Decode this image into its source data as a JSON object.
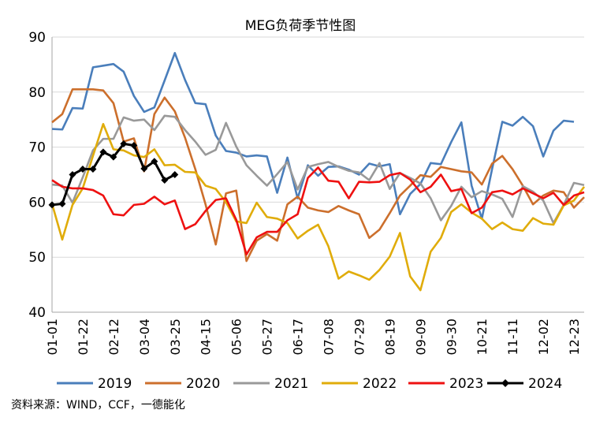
{
  "chart_data": {
    "type": "line",
    "title": "MEG负荷季节性图",
    "xlabel": "",
    "ylabel": "",
    "ylim": [
      40,
      90
    ],
    "yticks": [
      "40",
      "50",
      "60",
      "70",
      "80",
      "90"
    ],
    "xticks": [
      "01-01",
      "01-22",
      "02-12",
      "03-04",
      "03-25",
      "04-15",
      "05-06",
      "05-27",
      "06-17",
      "07-08",
      "07-29",
      "08-19",
      "09-09",
      "09-30",
      "10-21",
      "11-11",
      "12-02",
      "12-23"
    ],
    "grid": "horizontal",
    "legend_position": "bottom",
    "series": [
      {
        "name": "2019",
        "color": "#4a7ebb",
        "marker": "none",
        "x": [
          0,
          3,
          6,
          9,
          12,
          15,
          18,
          21,
          24,
          27,
          30,
          33,
          36,
          39,
          42,
          45,
          48,
          51,
          54,
          57,
          60,
          63,
          66,
          69,
          72,
          75,
          78,
          81,
          84,
          87,
          90,
          93,
          96,
          99,
          102,
          105,
          108,
          111,
          114,
          117,
          120,
          123,
          126,
          129,
          132,
          135,
          138,
          141,
          144,
          147,
          150,
          153,
          156
        ],
        "values": [
          73.3,
          73.2,
          77.1,
          77,
          84.5,
          84.8,
          85.1,
          83.7,
          79.3,
          76.4,
          77.2,
          82.1,
          87.1,
          82.2,
          78,
          77.8,
          72.1,
          69.3,
          69,
          68.3,
          68.5,
          68.3,
          61.7,
          68.1,
          60.7,
          66.7,
          64.8,
          66.4,
          66.5,
          65.9,
          65,
          67,
          66.5,
          66.9,
          57.8,
          61.5,
          63.3,
          67.1,
          66.9,
          70.9,
          74.5,
          63,
          57,
          66,
          74.6,
          73.9,
          75.5,
          73.8,
          68.3,
          73,
          74.8,
          74.6,
          null
        ]
      },
      {
        "name": "2020",
        "color": "#cc6f2c",
        "marker": "none",
        "x": [
          0,
          3,
          6,
          9,
          12,
          15,
          18,
          21,
          24,
          27,
          30,
          33,
          36,
          39,
          42,
          45,
          48,
          51,
          54,
          57,
          60,
          63,
          66,
          69,
          72,
          75,
          78,
          81,
          84,
          87,
          90,
          93,
          96,
          99,
          102,
          105,
          108,
          111,
          114,
          117,
          120,
          123,
          126,
          129,
          132,
          135,
          138,
          141,
          144,
          147,
          150,
          153,
          156
        ],
        "values": [
          74.5,
          76,
          80.5,
          80.5,
          80.5,
          80.3,
          78,
          71,
          71.6,
          65.6,
          76,
          79,
          76.5,
          71.7,
          66,
          59.6,
          52.3,
          61.6,
          62.1,
          49.3,
          53,
          54.2,
          53,
          59.6,
          61,
          59,
          58.5,
          58.2,
          59.3,
          58.5,
          57.8,
          53.5,
          55,
          58,
          61.2,
          63,
          64.9,
          64.6,
          66.4,
          66,
          65.6,
          65.4,
          63.2,
          67,
          68.4,
          66,
          63,
          59.6,
          61.2,
          62.1,
          61.8,
          59,
          60.9
        ]
      },
      {
        "name": "2021",
        "color": "#999999",
        "marker": "none",
        "x": [
          0,
          3,
          6,
          9,
          12,
          15,
          18,
          21,
          24,
          27,
          30,
          33,
          36,
          39,
          42,
          45,
          48,
          51,
          54,
          57,
          60,
          63,
          66,
          69,
          72,
          75,
          78,
          81,
          84,
          87,
          90,
          93,
          96,
          99,
          102,
          105,
          108,
          111,
          114,
          117,
          120,
          123,
          126,
          129,
          132,
          135,
          138,
          141,
          144,
          147,
          150,
          153,
          156
        ],
        "values": [
          63.2,
          63,
          59.9,
          64.5,
          69.4,
          71.5,
          71.5,
          75.4,
          74.8,
          75,
          73.1,
          75.7,
          75.5,
          73.1,
          71,
          68.6,
          69.5,
          74.4,
          70.1,
          66.7,
          64.8,
          63,
          65.1,
          67.3,
          62.3,
          66.4,
          66.9,
          67.3,
          66.4,
          65.7,
          65.4,
          64,
          67.1,
          62.4,
          65.3,
          64.4,
          63.4,
          60.7,
          56.7,
          59.3,
          62.8,
          60.9,
          62,
          61.4,
          60.6,
          57.3,
          62.9,
          61.9,
          60.3,
          56.2,
          59.5,
          63.5,
          63.1
        ]
      },
      {
        "name": "2022",
        "color": "#e0ac0a",
        "marker": "none",
        "x": [
          0,
          3,
          6,
          9,
          12,
          15,
          18,
          21,
          24,
          27,
          30,
          33,
          36,
          39,
          42,
          45,
          48,
          51,
          54,
          57,
          60,
          63,
          66,
          69,
          72,
          75,
          78,
          81,
          84,
          87,
          90,
          93,
          96,
          99,
          102,
          105,
          108,
          111,
          114,
          117,
          120,
          123,
          126,
          129,
          132,
          135,
          138,
          141,
          144,
          147,
          150,
          153,
          156
        ],
        "values": [
          59.7,
          53.2,
          59.5,
          62.5,
          68.4,
          74.2,
          69.6,
          69.4,
          68.5,
          68.2,
          69.6,
          66.7,
          66.8,
          65.5,
          65.4,
          63,
          62.4,
          60,
          56.5,
          56.2,
          59.9,
          57.3,
          57,
          56.2,
          53.4,
          54.8,
          55.9,
          52,
          46.1,
          47.4,
          46.7,
          45.9,
          47.7,
          50.1,
          54.4,
          46.5,
          44,
          51,
          53.5,
          58.2,
          59.6,
          58.1,
          57,
          55.1,
          56.3,
          55.1,
          54.8,
          57.1,
          56.1,
          55.9,
          59.4,
          60.3,
          62.8
        ]
      },
      {
        "name": "2023",
        "color": "#ee1111",
        "marker": "none",
        "x": [
          0,
          3,
          6,
          9,
          12,
          15,
          18,
          21,
          24,
          27,
          30,
          33,
          36,
          39,
          42,
          45,
          48,
          51,
          54,
          57,
          60,
          63,
          66,
          69,
          72,
          75,
          78,
          81,
          84,
          87,
          90,
          93,
          96,
          99,
          102,
          105,
          108,
          111,
          114,
          117,
          120,
          123,
          126,
          129,
          132,
          135,
          138,
          141,
          144,
          147,
          150,
          153,
          156
        ],
        "values": [
          64,
          62.8,
          62.5,
          62.5,
          62.2,
          61.2,
          57.8,
          57.6,
          59.5,
          59.7,
          61,
          59.6,
          60.3,
          55.1,
          56,
          58.4,
          60.4,
          60.7,
          56.8,
          50.5,
          53.6,
          54.6,
          54.6,
          56.7,
          57.8,
          64.4,
          66.3,
          63.9,
          63.7,
          60.7,
          63.7,
          63.6,
          63.7,
          64.9,
          65.3,
          64.1,
          61.8,
          62.8,
          65,
          62,
          62.4,
          58,
          59,
          61.8,
          62.1,
          61.4,
          62.5,
          61.6,
          60.7,
          61.7,
          59.5,
          61.2,
          61.8
        ]
      },
      {
        "name": "2024",
        "color": "#000000",
        "marker": "diamond",
        "x": [
          0,
          3,
          6,
          9,
          12,
          15,
          18,
          21,
          24,
          27,
          30,
          33,
          36
        ],
        "values": [
          59.5,
          59.7,
          65,
          66,
          66,
          69.1,
          68.2,
          70.6,
          70.3,
          66.1,
          67.4,
          64,
          65
        ]
      }
    ]
  },
  "source_note": "资料来源：WIND，CCF，一德能化"
}
